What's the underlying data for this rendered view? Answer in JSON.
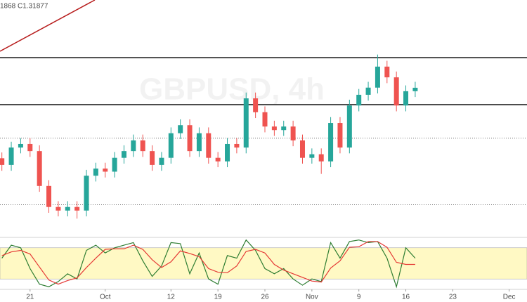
{
  "chart_data": [
    {
      "type": "candlestick",
      "header": "1868 C1.31877",
      "watermark": "GBPUSD, 4h",
      "x": [
        0,
        1,
        2,
        3,
        4,
        5,
        6,
        7,
        8,
        9,
        10,
        11,
        12,
        13,
        14,
        15,
        16,
        17,
        18,
        19,
        20,
        21,
        22,
        23,
        24,
        25,
        26,
        27,
        28,
        29,
        30,
        31,
        32,
        33,
        34,
        35,
        36,
        37,
        38,
        39,
        40,
        41,
        42,
        43,
        44
      ],
      "open": [
        1.303,
        1.3015,
        1.3054,
        1.3062,
        1.3046,
        1.2968,
        1.2921,
        1.2913,
        1.2921,
        1.2913,
        1.2991,
        1.3007,
        1.3,
        1.3031,
        1.3046,
        1.307,
        1.3046,
        1.3015,
        1.3031,
        1.3086,
        1.3104,
        1.3046,
        1.3086,
        1.3031,
        1.3023,
        1.3062,
        1.3054,
        1.3164,
        1.3133,
        1.3101,
        1.3093,
        1.3101,
        1.307,
        1.3031,
        1.3039,
        1.3023,
        1.3109,
        1.3054,
        1.3148,
        1.3172,
        1.3188,
        1.3235,
        1.3211,
        1.3148,
        1.318
      ],
      "high": [
        1.3043,
        1.3067,
        1.3075,
        1.3075,
        1.3059,
        1.2981,
        1.2934,
        1.2934,
        1.2934,
        1.3004,
        1.302,
        1.302,
        1.3044,
        1.3059,
        1.3083,
        1.3083,
        1.3059,
        1.3044,
        1.3099,
        1.3117,
        1.3117,
        1.3099,
        1.3099,
        1.3044,
        1.3075,
        1.3075,
        1.3177,
        1.3177,
        1.3146,
        1.3114,
        1.3114,
        1.3114,
        1.3083,
        1.3052,
        1.3052,
        1.3122,
        1.3122,
        1.3161,
        1.3185,
        1.3201,
        1.3262,
        1.3248,
        1.3224,
        1.3193,
        1.3201
      ],
      "low": [
        1.3002,
        1.3002,
        1.3041,
        1.3033,
        1.2955,
        1.2908,
        1.29,
        1.29,
        1.2895,
        1.29,
        1.2978,
        1.2987,
        1.2987,
        1.3018,
        1.3033,
        1.3033,
        1.3002,
        1.3002,
        1.3018,
        1.3073,
        1.3033,
        1.3033,
        1.3018,
        1.301,
        1.301,
        1.3041,
        1.3041,
        1.312,
        1.3088,
        1.308,
        1.308,
        1.3057,
        1.3018,
        1.3018,
        1.2995,
        1.301,
        1.3041,
        1.3041,
        1.3135,
        1.3159,
        1.3175,
        1.3198,
        1.3135,
        1.3135,
        1.3167
      ],
      "close": [
        1.3015,
        1.3054,
        1.3062,
        1.3046,
        1.2968,
        1.2921,
        1.2913,
        1.2921,
        1.2913,
        1.2991,
        1.3007,
        1.3,
        1.3031,
        1.3046,
        1.307,
        1.3046,
        1.3015,
        1.3031,
        1.3086,
        1.3104,
        1.3046,
        1.3086,
        1.3031,
        1.3023,
        1.3062,
        1.3054,
        1.3164,
        1.3133,
        1.3101,
        1.3093,
        1.3101,
        1.307,
        1.3031,
        1.3039,
        1.3023,
        1.3109,
        1.3054,
        1.3148,
        1.3172,
        1.3188,
        1.3235,
        1.3211,
        1.3148,
        1.318,
        1.31877
      ],
      "up_color": "#26a69a",
      "down_color": "#ef5350",
      "levels": [
        1.3255,
        1.315
      ],
      "dotted_levels": [
        1.3075,
        1.2926
      ],
      "xlim": [
        -0.2,
        55.9
      ],
      "ylim": [
        1.2853,
        1.3384
      ]
    },
    {
      "type": "line",
      "x": [
        0,
        1,
        2,
        3,
        4,
        5,
        6,
        7,
        8,
        9,
        10,
        11,
        12,
        13,
        14,
        15,
        16,
        17,
        18,
        19,
        20,
        21,
        22,
        23,
        24,
        25,
        26,
        27,
        28,
        29,
        30,
        31,
        32,
        33,
        34,
        35,
        36,
        37,
        38,
        39,
        40,
        41,
        42,
        43,
        44
      ],
      "series": [
        {
          "color": "#2e7d32",
          "values": [
            60,
            85,
            80,
            40,
            10,
            5,
            15,
            30,
            20,
            75,
            85,
            70,
            80,
            85,
            90,
            55,
            25,
            45,
            90,
            88,
            30,
            70,
            20,
            10,
            65,
            60,
            95,
            75,
            40,
            30,
            40,
            20,
            8,
            20,
            15,
            90,
            60,
            92,
            95,
            90,
            92,
            60,
            5,
            80,
            60
          ]
        },
        {
          "color": "#e53935",
          "values": [
            65,
            72,
            75,
            68,
            43,
            18,
            10,
            17,
            22,
            42,
            60,
            77,
            78,
            78,
            85,
            77,
            57,
            42,
            53,
            74,
            69,
            63,
            40,
            33,
            32,
            45,
            73,
            77,
            70,
            48,
            37,
            30,
            23,
            16,
            14,
            41,
            55,
            81,
            82,
            92,
            92,
            81,
            52,
            48,
            48
          ]
        }
      ],
      "band": [
        20,
        80
      ],
      "band_color": "#fff9c4",
      "xlim": [
        -0.2,
        55.9
      ],
      "ylim": [
        0,
        100
      ],
      "xticks": [
        {
          "value": 3,
          "label": "21"
        },
        {
          "value": 11,
          "label": "Oct"
        },
        {
          "value": 18,
          "label": "12"
        },
        {
          "value": 23,
          "label": "19"
        },
        {
          "value": 28,
          "label": "26"
        },
        {
          "value": 33,
          "label": "Nov"
        },
        {
          "value": 38,
          "label": "9"
        },
        {
          "value": 43,
          "label": "16"
        },
        {
          "value": 48,
          "label": "23"
        },
        {
          "value": 54,
          "label": "Dec"
        }
      ]
    }
  ]
}
